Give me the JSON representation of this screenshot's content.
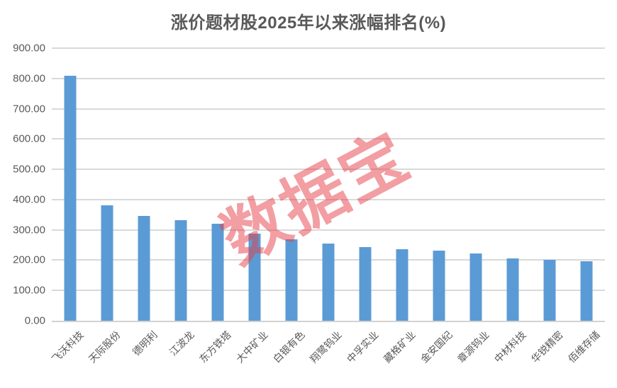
{
  "title": "涨价题材股2025年以来涨幅排名(%)",
  "watermark": "数据宝",
  "colors": {
    "bar": "#5B9BD5",
    "text": "#595959",
    "gridline": "#D9D9D9",
    "axis_line": "#D2D2D2",
    "watermark": "rgba(230,62,72,0.5)"
  },
  "chart_data": {
    "type": "bar",
    "title": "涨价题材股2025年以来涨幅排名(%)",
    "categories": [
      "飞沃科技",
      "天际股份",
      "德明利",
      "江波龙",
      "东方铁塔",
      "大中矿业",
      "白银有色",
      "翔鹭钨业",
      "中孚实业",
      "藏格矿业",
      "金安国纪",
      "章源钨业",
      "中材科技",
      "华锐精密",
      "佰维存储"
    ],
    "values": [
      808,
      380,
      346,
      333,
      321,
      288,
      268,
      256,
      242,
      237,
      231,
      221,
      206,
      200,
      197
    ],
    "xlabel": "",
    "ylabel": "",
    "ylim": [
      0,
      900
    ],
    "yticks": [
      "0.00",
      "100.00",
      "200.00",
      "300.00",
      "400.00",
      "500.00",
      "600.00",
      "700.00",
      "800.00",
      "900.00"
    ],
    "grid": true,
    "legend": false,
    "bar_color": "#5B9BD5",
    "x_label_rotation_deg": -45
  }
}
